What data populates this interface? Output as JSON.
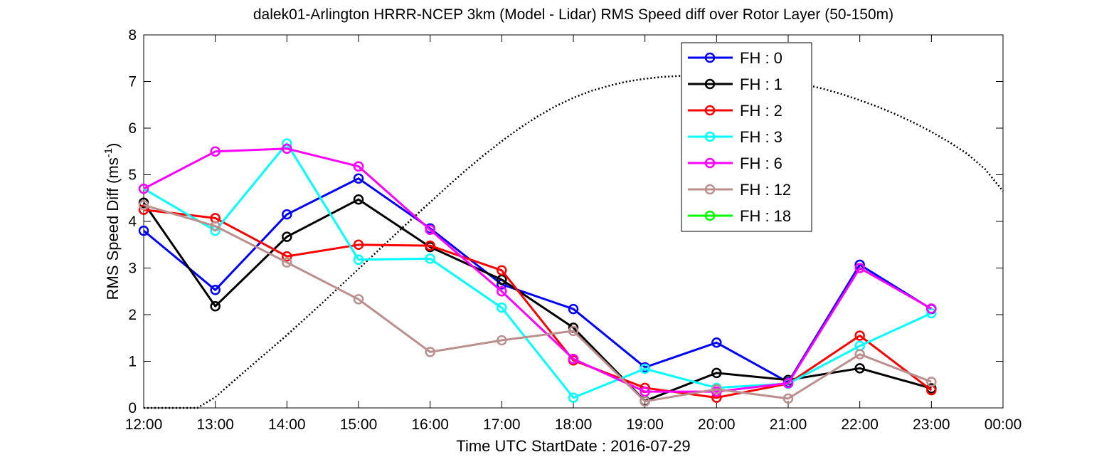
{
  "chart_data": {
    "type": "line",
    "title": "dalek01-Arlington HRRR-NCEP 3km (Model - Lidar) RMS Speed diff over Rotor Layer (50-150m)",
    "xlabel": "Time UTC    StartDate : 2016-07-29",
    "ylabel": "RMS Speed Diff (ms",
    "ylabel_sup": "-1",
    "ylabel_end": ")",
    "x_ticks": [
      "12:00",
      "13:00",
      "14:00",
      "15:00",
      "16:00",
      "17:00",
      "18:00",
      "19:00",
      "20:00",
      "21:00",
      "22:00",
      "23:00",
      "00:00"
    ],
    "y_ticks": [
      "0",
      "1",
      "2",
      "3",
      "4",
      "5",
      "6",
      "7",
      "8"
    ],
    "xlim": [
      12,
      24
    ],
    "ylim": [
      0,
      8
    ],
    "grid": false,
    "legend_position": "top-right",
    "series": [
      {
        "name": "FH : 0",
        "color": "#0000ff",
        "x": [
          12,
          13,
          14,
          15,
          16,
          17,
          18,
          19,
          20,
          21,
          22,
          23
        ],
        "values": [
          3.8,
          2.53,
          4.15,
          4.92,
          3.85,
          2.65,
          2.12,
          0.87,
          1.4,
          0.55,
          3.07,
          2.12
        ]
      },
      {
        "name": "FH : 1",
        "color": "#000000",
        "x": [
          12,
          13,
          14,
          15,
          16,
          17,
          18,
          19,
          20,
          21,
          22,
          23
        ],
        "values": [
          4.4,
          2.18,
          3.67,
          4.47,
          3.45,
          2.75,
          1.72,
          0.15,
          0.75,
          0.6,
          0.85,
          0.42
        ]
      },
      {
        "name": "FH : 2",
        "color": "#ff0000",
        "x": [
          12,
          13,
          14,
          15,
          16,
          17,
          18,
          19,
          20,
          21,
          22,
          23
        ],
        "values": [
          4.25,
          4.07,
          3.25,
          3.5,
          3.48,
          2.95,
          1.02,
          0.43,
          0.22,
          0.52,
          1.55,
          0.38
        ]
      },
      {
        "name": "FH : 3",
        "color": "#00ffff",
        "x": [
          12,
          13,
          14,
          15,
          16,
          17,
          18,
          19,
          20,
          21,
          22,
          23
        ],
        "values": [
          4.7,
          3.8,
          5.67,
          3.18,
          3.2,
          2.15,
          0.22,
          0.84,
          0.43,
          0.52,
          1.33,
          2.03
        ]
      },
      {
        "name": "FH : 6",
        "color": "#ff00ff",
        "x": [
          12,
          13,
          14,
          15,
          16,
          17,
          18,
          19,
          20,
          21,
          22,
          23
        ],
        "values": [
          4.7,
          5.5,
          5.56,
          5.18,
          3.82,
          2.5,
          1.05,
          0.35,
          0.35,
          0.53,
          3.0,
          2.13
        ]
      },
      {
        "name": "FH : 12",
        "color": "#bc8f8f",
        "x": [
          12,
          13,
          14,
          15,
          16,
          17,
          18,
          19,
          20,
          21,
          22,
          23
        ],
        "values": [
          4.35,
          3.9,
          3.12,
          2.33,
          1.2,
          1.45,
          1.65,
          0.14,
          0.4,
          0.2,
          1.15,
          0.56
        ]
      },
      {
        "name": "FH : 18",
        "color": "#00ff00",
        "x": [],
        "values": []
      }
    ],
    "reference_curve": {
      "style": "dotted",
      "color": "#000000",
      "x": [
        12,
        12.25,
        12.5,
        12.75,
        13,
        13.25,
        13.5,
        13.75,
        14,
        14.25,
        14.5,
        14.75,
        15,
        15.25,
        15.5,
        15.75,
        16,
        16.25,
        16.5,
        16.75,
        17,
        17.25,
        17.5,
        17.75,
        18,
        18.25,
        18.5,
        18.75,
        19,
        19.25,
        19.5,
        19.75,
        20,
        20.25,
        20.5,
        20.75,
        21,
        21.25,
        21.5,
        21.75,
        22,
        22.25,
        22.5,
        22.75,
        23,
        23.25,
        23.5,
        23.75,
        24
      ],
      "values": [
        0,
        0,
        0,
        0,
        0.23,
        0.57,
        0.9,
        1.23,
        1.56,
        1.91,
        2.26,
        2.62,
        2.98,
        3.34,
        3.7,
        4.06,
        4.41,
        4.76,
        5.1,
        5.42,
        5.72,
        6.0,
        6.25,
        6.47,
        6.65,
        6.8,
        6.91,
        7.0,
        7.06,
        7.1,
        7.12,
        7.13,
        7.13,
        7.12,
        7.1,
        7.06,
        7.0,
        6.93,
        6.84,
        6.73,
        6.6,
        6.46,
        6.3,
        6.12,
        5.92,
        5.7,
        5.45,
        5.12,
        4.65
      ]
    }
  }
}
